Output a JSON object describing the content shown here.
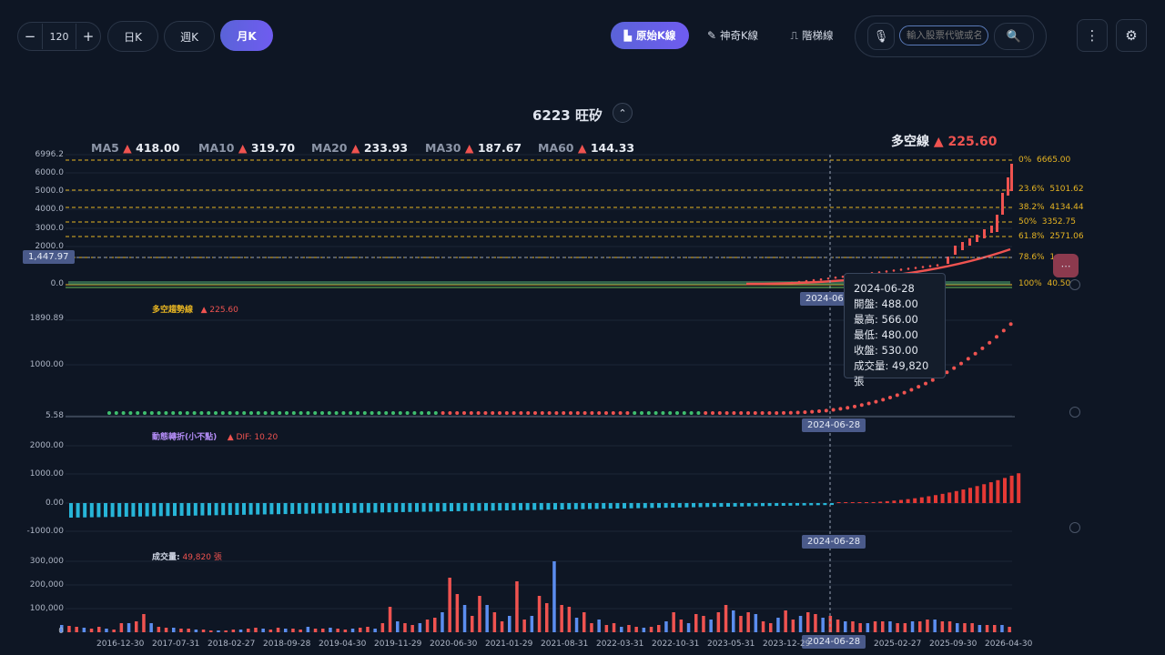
{
  "toolbar": {
    "count_minus": "−",
    "count_value": "120",
    "count_plus": "+",
    "periods": [
      "日K",
      "週K",
      "月K"
    ],
    "active_period": "月K",
    "chart_modes": [
      "原始K線",
      "神奇K線",
      "階梯線"
    ],
    "search_placeholder": "輸入股票代號或名稱"
  },
  "stock": {
    "title": "6223 旺矽"
  },
  "ma": [
    {
      "label": "MA5",
      "value": "418.00"
    },
    {
      "label": "MA10",
      "value": "319.70"
    },
    {
      "label": "MA20",
      "value": "233.93"
    },
    {
      "label": "MA30",
      "value": "187.67"
    },
    {
      "label": "MA60",
      "value": "144.33"
    }
  ],
  "long_short": {
    "label": "多空線",
    "value": "▲ 225.60"
  },
  "price_axis": [
    "6996.2",
    "6000.0",
    "5000.0",
    "4000.0",
    "3000.0",
    "2000.0",
    "1000.0",
    "0.0"
  ],
  "crosshair_price": "1,447.97",
  "fib_levels": [
    {
      "pct": "0%",
      "price": "6665.00"
    },
    {
      "pct": "23.6%",
      "price": "5101.62"
    },
    {
      "pct": "38.2%",
      "price": "4134.44"
    },
    {
      "pct": "50%",
      "price": "3352.75"
    },
    {
      "pct": "61.8%",
      "price": "2571.06"
    },
    {
      "pct": "78.6%",
      "price": "1..."
    },
    {
      "pct": "100%",
      "price": "40.50"
    }
  ],
  "trend_panel": {
    "label": "多空趨勢線",
    "value": "▲ 225.60",
    "axis": [
      "1890.89",
      "1000.00",
      "5.58"
    ]
  },
  "macd_panel": {
    "label": "動態轉折(小不點)",
    "value": "▲ DIF: 10.20",
    "axis": [
      "2000.00",
      "1000.00",
      "0.00",
      "-1000.00"
    ]
  },
  "volume_panel": {
    "label": "成交量:",
    "value": "49,820 張",
    "axis": [
      "300,000",
      "200,000",
      "100,000",
      "0"
    ]
  },
  "crosshair_date": "2024-06-28",
  "tooltip": {
    "date": "2024-06-28",
    "open": "開盤: 488.00",
    "high": "最高: 566.00",
    "low": "最低: 480.00",
    "close": "收盤: 530.00",
    "volume": "成交量: 49,820 張"
  },
  "x_dates": [
    "2016-12-30",
    "2017-07-31",
    "2018-02-27",
    "2018-09-28",
    "2019-04-30",
    "2019-11-29",
    "2020-06-30",
    "2021-01-29",
    "2021-08-31",
    "2022-03-31",
    "2022-10-31",
    "2023-05-31",
    "2023-12-29",
    "2025-02-27",
    "2025-09-30",
    "2026-04-30"
  ],
  "colors": {
    "up": "#ef5350",
    "down": "#5b8def",
    "accent": "#6a5cf0",
    "fib": "#e6b422",
    "macd_neg": "#27b5d8",
    "trend_green": "#3fbf6f"
  }
}
